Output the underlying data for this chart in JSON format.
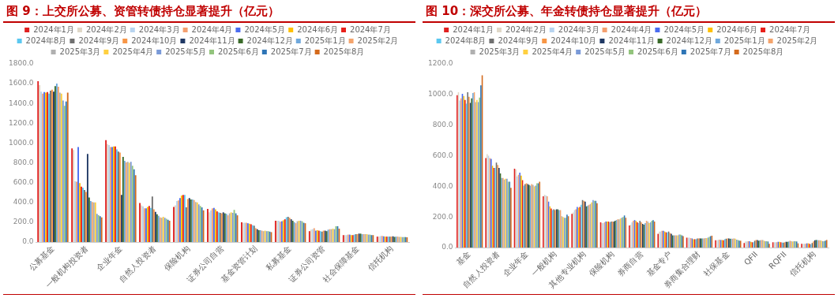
{
  "chart_data": [
    {
      "type": "bar",
      "title": "图 9：上交所公募、资管转债持仓显著提升（亿元）",
      "legend": "top",
      "categories": [
        "公募基金",
        "一般机构投资者",
        "企业年金",
        "自然人投资者",
        "保险机构",
        "证券公司自营",
        "基金资管计划",
        "私募基金",
        "证券公司资管",
        "社会保障基金",
        "信托机构"
      ],
      "ylim": [
        0,
        1800
      ],
      "yticks": [
        {
          "value": 0,
          "label": "0.0"
        },
        {
          "value": 200,
          "label": "200.0"
        },
        {
          "value": 400,
          "label": "400.0"
        },
        {
          "value": 600,
          "label": "600.0"
        },
        {
          "value": 800,
          "label": "800.0"
        },
        {
          "value": 1000,
          "label": "1000.0"
        },
        {
          "value": 1200,
          "label": "1200.0"
        },
        {
          "value": 1400,
          "label": "1400.0"
        },
        {
          "value": 1600,
          "label": "1600.0"
        },
        {
          "value": 1800,
          "label": "1800.0"
        }
      ],
      "series": [
        {
          "name": "2024年1月",
          "color": "#e02020",
          "values": [
            1625,
            945,
            1030,
            395,
            355,
            335,
            200,
            215,
            110,
            70,
            55
          ]
        },
        {
          "name": "2024年2月",
          "color": "#e0d8c8",
          "values": [
            1585,
            930,
            990,
            370,
            370,
            300,
            195,
            215,
            125,
            70,
            55
          ]
        },
        {
          "name": "2024年3月",
          "color": "#b8d4f0",
          "values": [
            1520,
            615,
            980,
            360,
            415,
            320,
            195,
            215,
            130,
            70,
            60
          ]
        },
        {
          "name": "2024年4月",
          "color": "#f4a070",
          "values": [
            1500,
            610,
            960,
            340,
            420,
            340,
            195,
            205,
            140,
            75,
            62
          ]
        },
        {
          "name": "2024年5月",
          "color": "#4a6cf0",
          "values": [
            1515,
            960,
            960,
            340,
            445,
            345,
            190,
            210,
            115,
            75,
            58
          ]
        },
        {
          "name": "2024年6月",
          "color": "#ffc000",
          "values": [
            1510,
            595,
            965,
            355,
            470,
            330,
            185,
            220,
            120,
            70,
            55
          ]
        },
        {
          "name": "2024年7月",
          "color": "#e8201a",
          "values": [
            1515,
            560,
            965,
            365,
            475,
            310,
            180,
            230,
            115,
            70,
            55
          ]
        },
        {
          "name": "2024年8月",
          "color": "#5bc8f0",
          "values": [
            1500,
            550,
            935,
            345,
            475,
            300,
            170,
            250,
            110,
            75,
            55
          ]
        },
        {
          "name": "2024年9月",
          "color": "#707070",
          "values": [
            1530,
            525,
            915,
            460,
            350,
            295,
            165,
            255,
            105,
            80,
            55
          ]
        },
        {
          "name": "2024年10月",
          "color": "#f79646",
          "values": [
            1540,
            505,
            905,
            330,
            435,
            290,
            140,
            245,
            115,
            80,
            55
          ]
        },
        {
          "name": "2024年11月",
          "color": "#1f3864",
          "values": [
            1520,
            890,
            475,
            305,
            445,
            300,
            130,
            230,
            115,
            85,
            58
          ]
        },
        {
          "name": "2024年12月",
          "color": "#3a6b2a",
          "values": [
            1575,
            450,
            860,
            280,
            430,
            290,
            120,
            215,
            110,
            85,
            52
          ]
        },
        {
          "name": "2025年1月",
          "color": "#6fa8dc",
          "values": [
            1600,
            415,
            820,
            265,
            430,
            285,
            120,
            200,
            125,
            80,
            55
          ]
        },
        {
          "name": "2025年2月",
          "color": "#f4a46c",
          "values": [
            1570,
            405,
            805,
            250,
            425,
            270,
            115,
            190,
            130,
            80,
            55
          ]
        },
        {
          "name": "2025年3月",
          "color": "#b0b0b0",
          "values": [
            1510,
            400,
            810,
            245,
            405,
            290,
            110,
            210,
            130,
            80,
            52
          ]
        },
        {
          "name": "2025年4月",
          "color": "#ffd040",
          "values": [
            1500,
            400,
            800,
            255,
            400,
            300,
            115,
            215,
            135,
            80,
            52
          ]
        },
        {
          "name": "2025年5月",
          "color": "#7a9ad8",
          "values": [
            1430,
            285,
            810,
            245,
            380,
            295,
            110,
            215,
            130,
            75,
            50
          ]
        },
        {
          "name": "2025年6月",
          "color": "#93c47d",
          "values": [
            1375,
            270,
            770,
            235,
            365,
            325,
            110,
            210,
            160,
            75,
            50
          ]
        },
        {
          "name": "2025年7月",
          "color": "#2e75b6",
          "values": [
            1420,
            260,
            735,
            225,
            350,
            290,
            105,
            195,
            160,
            70,
            50
          ]
        },
        {
          "name": "2025年8月",
          "color": "#d46a1c",
          "values": [
            1510,
            250,
            675,
            215,
            320,
            270,
            100,
            190,
            135,
            70,
            48
          ]
        }
      ]
    },
    {
      "type": "bar",
      "title": "图 10：深交所公募、年金转债持仓显著提升（亿元）",
      "legend": "top",
      "categories": [
        "基金",
        "自然人投资者",
        "企业年金",
        "一般机构",
        "其他专业机构",
        "保险机构",
        "券商自营",
        "基金专户",
        "券商集合理财",
        "社保基金",
        "QFII",
        "RQFII",
        "信托机构"
      ],
      "ylim": [
        0,
        1200
      ],
      "yticks": [
        {
          "value": 0,
          "label": "0.0"
        },
        {
          "value": 200,
          "label": "200.0"
        },
        {
          "value": 400,
          "label": "400.0"
        },
        {
          "value": 600,
          "label": "600.0"
        },
        {
          "value": 800,
          "label": "800.0"
        },
        {
          "value": 1000,
          "label": "1000.0"
        },
        {
          "value": 1200,
          "label": "1200.0"
        }
      ],
      "series": [
        {
          "name": "2024年1月",
          "color": "#e02020",
          "values": [
            995,
            585,
            515,
            335,
            220,
            165,
            145,
            90,
            65,
            48,
            30,
            35,
            25
          ]
        },
        {
          "name": "2024年2月",
          "color": "#e0d8c8",
          "values": [
            1015,
            610,
            510,
            345,
            230,
            160,
            150,
            105,
            65,
            48,
            40,
            35,
            25
          ]
        },
        {
          "name": "2024年3月",
          "color": "#b8d4f0",
          "values": [
            960,
            600,
            465,
            340,
            245,
            160,
            165,
            105,
            65,
            50,
            40,
            35,
            25
          ]
        },
        {
          "name": "2024年4月",
          "color": "#f4a070",
          "values": [
            975,
            585,
            475,
            335,
            250,
            165,
            175,
            110,
            62,
            52,
            42,
            35,
            25
          ]
        },
        {
          "name": "2024年5月",
          "color": "#4a6cf0",
          "values": [
            1005,
            580,
            490,
            300,
            265,
            170,
            180,
            110,
            60,
            50,
            42,
            38,
            28
          ]
        },
        {
          "name": "2024年6月",
          "color": "#ffc000",
          "values": [
            990,
            535,
            470,
            270,
            260,
            170,
            175,
            105,
            55,
            50,
            38,
            38,
            28
          ]
        },
        {
          "name": "2024年7月",
          "color": "#e8201a",
          "values": [
            965,
            520,
            440,
            255,
            265,
            170,
            165,
            100,
            55,
            48,
            35,
            35,
            25
          ]
        },
        {
          "name": "2024年8月",
          "color": "#5bc8f0",
          "values": [
            940,
            520,
            405,
            245,
            280,
            165,
            160,
            100,
            55,
            55,
            35,
            33,
            22
          ]
        },
        {
          "name": "2024年9月",
          "color": "#707070",
          "values": [
            1015,
            555,
            415,
            250,
            310,
            170,
            175,
            105,
            60,
            58,
            45,
            32,
            30
          ]
        },
        {
          "name": "2024年10月",
          "color": "#f79646",
          "values": [
            985,
            540,
            420,
            245,
            305,
            170,
            165,
            95,
            60,
            60,
            50,
            35,
            40
          ]
        },
        {
          "name": "2024年11月",
          "color": "#1f3864",
          "values": [
            945,
            520,
            415,
            250,
            300,
            170,
            155,
            90,
            60,
            60,
            50,
            38,
            48
          ]
        },
        {
          "name": "2024年12月",
          "color": "#3a6b2a",
          "values": [
            975,
            485,
            410,
            250,
            270,
            175,
            150,
            80,
            60,
            58,
            45,
            38,
            50
          ]
        },
        {
          "name": "2025年1月",
          "color": "#6fa8dc",
          "values": [
            1010,
            455,
            405,
            245,
            275,
            180,
            160,
            80,
            60,
            58,
            48,
            40,
            50
          ]
        },
        {
          "name": "2025年2月",
          "color": "#f4a46c",
          "values": [
            1015,
            455,
            415,
            245,
            280,
            185,
            175,
            80,
            60,
            58,
            50,
            45,
            48
          ]
        },
        {
          "name": "2025年3月",
          "color": "#b0b0b0",
          "values": [
            950,
            445,
            410,
            205,
            285,
            185,
            170,
            80,
            62,
            60,
            50,
            42,
            48
          ]
        },
        {
          "name": "2025年4月",
          "color": "#ffd040",
          "values": [
            965,
            450,
            400,
            200,
            295,
            190,
            160,
            80,
            62,
            58,
            45,
            40,
            45
          ]
        },
        {
          "name": "2025年5月",
          "color": "#7a9ad8",
          "values": [
            950,
            450,
            405,
            195,
            310,
            195,
            165,
            85,
            65,
            52,
            42,
            42,
            42
          ]
        },
        {
          "name": "2025年6月",
          "color": "#93c47d",
          "values": [
            980,
            430,
            420,
            195,
            305,
            200,
            175,
            85,
            70,
            50,
            42,
            42,
            42
          ]
        },
        {
          "name": "2025年7月",
          "color": "#2e75b6",
          "values": [
            1060,
            430,
            420,
            215,
            305,
            210,
            180,
            80,
            75,
            45,
            40,
            40,
            45
          ]
        },
        {
          "name": "2025年8月",
          "color": "#d46a1c",
          "values": [
            1125,
            390,
            430,
            205,
            290,
            195,
            170,
            75,
            78,
            45,
            25,
            28,
            50
          ]
        }
      ]
    }
  ]
}
